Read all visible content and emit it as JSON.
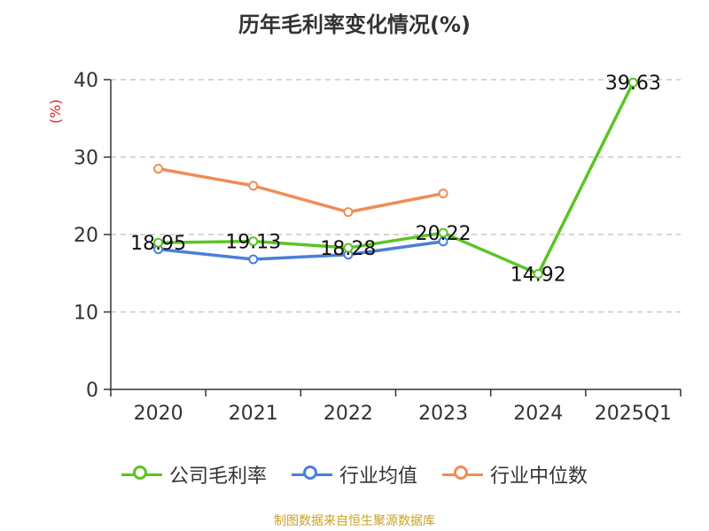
{
  "title": "历年毛利率变化情况(%)",
  "source": "制图数据来自恒生聚源数据库",
  "chart_data": {
    "type": "line",
    "title": "历年毛利率变化情况(%)",
    "ylabel": "(%)",
    "xlabel": "",
    "categories": [
      "2020",
      "2021",
      "2022",
      "2023",
      "2024",
      "2025Q1"
    ],
    "ylim": [
      0,
      40
    ],
    "yticks": [
      0,
      10,
      20,
      30,
      40
    ],
    "grid": "horizontal dashed",
    "legend_position": "bottom",
    "series": [
      {
        "name": "公司毛利率",
        "color": "#5bc424",
        "values": [
          18.95,
          19.13,
          18.28,
          20.22,
          14.92,
          39.63
        ],
        "show_labels": true
      },
      {
        "name": "行业均值",
        "color": "#4a7fd9",
        "values": [
          18.1,
          16.8,
          17.4,
          19.1,
          null,
          null
        ],
        "show_labels": false
      },
      {
        "name": "行业中位数",
        "color": "#f08c54",
        "values": [
          28.5,
          26.3,
          22.9,
          25.3,
          null,
          null
        ],
        "show_labels": false
      }
    ],
    "data_labels": [
      "18.95",
      "19.13",
      "18.28",
      "20.22",
      "14.92",
      "39.63"
    ]
  }
}
